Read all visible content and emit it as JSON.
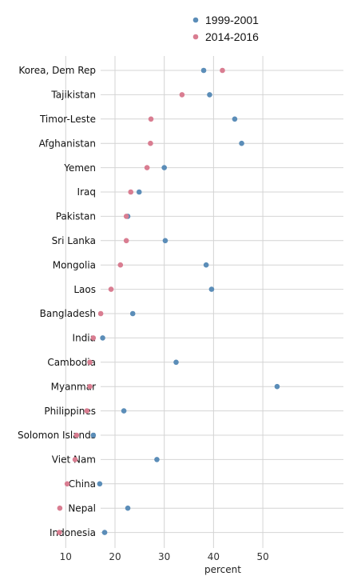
{
  "chart_data": {
    "type": "scatter",
    "title": "",
    "xlabel": "percent",
    "ylabel": "",
    "xlim": [
      6,
      55
    ],
    "xticks": [
      "10",
      "20",
      "30",
      "40",
      "50"
    ],
    "grid": true,
    "legend_position": "top",
    "categories": [
      "Korea, Dem Rep",
      "Tajikistan",
      "Timor-Leste",
      "Afghanistan",
      "Yemen",
      "Iraq",
      "Pakistan",
      "Sri Lanka",
      "Mongolia",
      "Laos",
      "Bangladesh",
      "India",
      "Cambodia",
      "Myanmar",
      "Philippines",
      "Solomon Islands",
      "Viet Nam",
      "China",
      "Nepal",
      "Indonesia"
    ],
    "series": [
      {
        "name": "1999-2001",
        "color": "#5b8db8",
        "values": [
          38.0,
          39.2,
          44.3,
          45.7,
          30.0,
          24.9,
          22.6,
          30.2,
          38.5,
          39.6,
          23.6,
          17.5,
          32.4,
          52.9,
          21.8,
          15.6,
          28.5,
          16.9,
          22.6,
          17.9
        ]
      },
      {
        "name": "2014-2016",
        "color": "#d97d91",
        "values": [
          41.8,
          33.6,
          27.3,
          27.2,
          26.5,
          23.2,
          22.3,
          22.3,
          21.1,
          19.2,
          17.1,
          15.6,
          14.9,
          14.9,
          14.3,
          12.2,
          11.9,
          10.3,
          8.8,
          8.7
        ]
      }
    ]
  }
}
